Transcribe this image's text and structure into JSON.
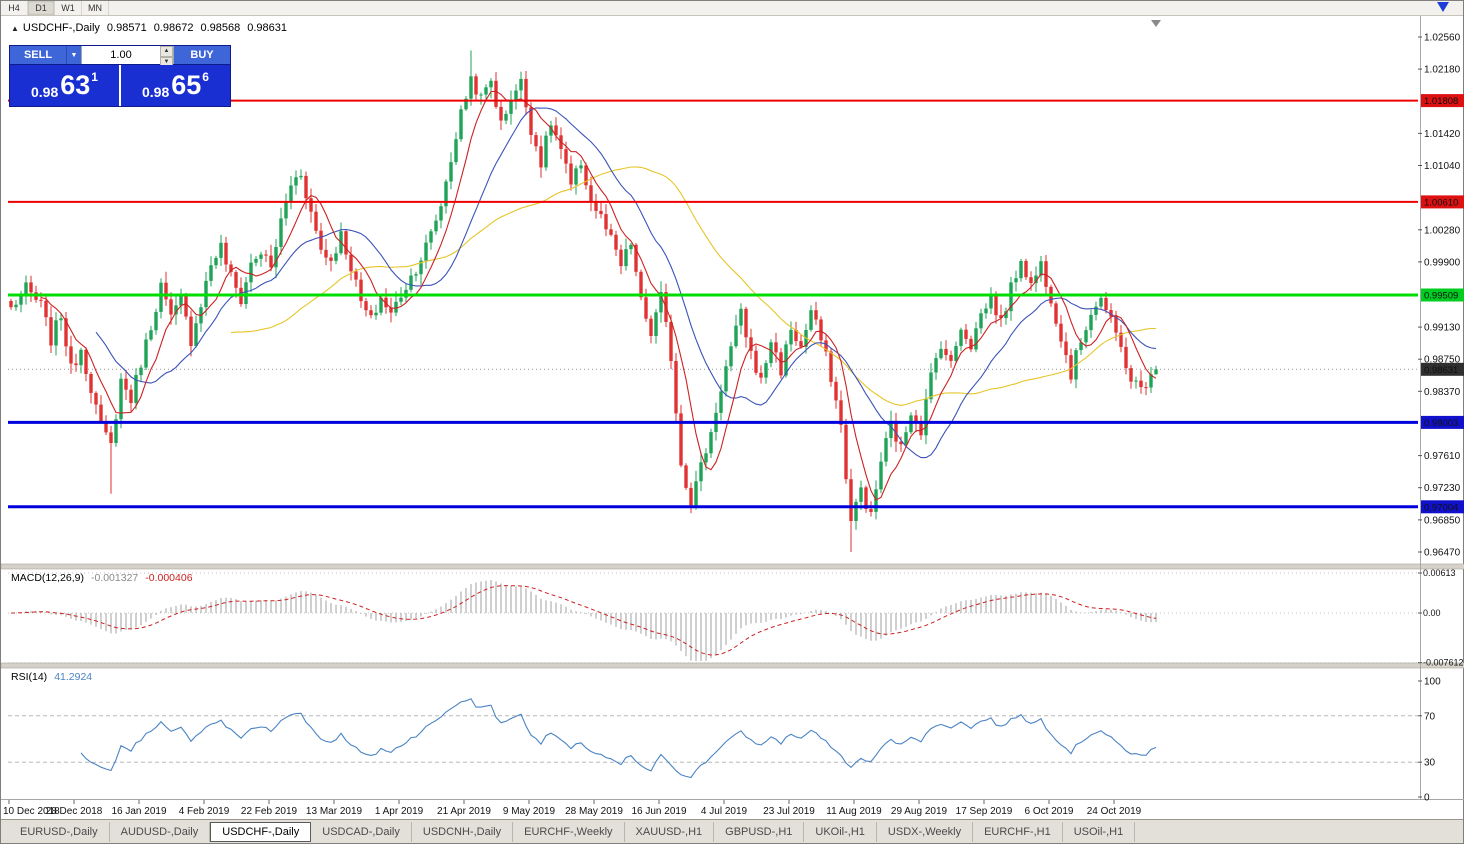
{
  "toolbar": {
    "items": [
      "H4",
      "D1",
      "W1",
      "MN"
    ],
    "active": "D1"
  },
  "icons": {
    "collapse": "▲",
    "dropdown": "▼",
    "spin_up": "▲",
    "spin_down": "▼"
  },
  "chart_header": {
    "symbol": "USDCHF-,Daily",
    "open": "0.98571",
    "high": "0.98672",
    "low": "0.98568",
    "close": "0.98631"
  },
  "trade_panel": {
    "sell_label": "SELL",
    "buy_label": "BUY",
    "volume": "1.00",
    "sell_price_major": "0.98",
    "sell_price_pips": "63",
    "sell_price_point": "1",
    "buy_price_major": "0.98",
    "buy_price_pips": "65",
    "buy_price_point": "6"
  },
  "indicators": {
    "macd_label": "MACD(12,26,9)",
    "macd_main_value": "-0.001327",
    "macd_signal_value": "-0.000406",
    "rsi_label": "RSI(14)",
    "rsi_value": "41.2924"
  },
  "tabs": [
    {
      "label": "EURUSD-,Daily",
      "active": false
    },
    {
      "label": "AUDUSD-,Daily",
      "active": false
    },
    {
      "label": "USDCHF-,Daily",
      "active": true
    },
    {
      "label": "USDCAD-,Daily",
      "active": false
    },
    {
      "label": "USDCNH-,Daily",
      "active": false
    },
    {
      "label": "EURCHF-,Weekly",
      "active": false
    },
    {
      "label": "XAUUSD-,H1",
      "active": false
    },
    {
      "label": "GBPUSD-,H1",
      "active": false
    },
    {
      "label": "UKOil-,H1",
      "active": false
    },
    {
      "label": "USDX-,Weekly",
      "active": false
    },
    {
      "label": "EURCHF-,H1",
      "active": false
    },
    {
      "label": "USOil-,H1",
      "active": false
    }
  ],
  "chart_data": [
    {
      "type": "candlestick",
      "symbol": "USDCHF",
      "timeframe": "Daily",
      "x_labels": [
        "10 Dec 2018",
        "28 Dec 2018",
        "16 Jan 2019",
        "4 Feb 2019",
        "22 Feb 2019",
        "13 Mar 2019",
        "1 Apr 2019",
        "21 Apr 2019",
        "9 May 2019",
        "28 May 2019",
        "16 Jun 2019",
        "4 Jul 2019",
        "23 Jul 2019",
        "11 Aug 2019",
        "29 Aug 2019",
        "17 Sep 2019",
        "6 Oct 2019",
        "24 Oct 2019"
      ],
      "bar_count": 230,
      "bars_per_label": 13,
      "ylim": [
        0.9647,
        1.0256
      ],
      "price_axis_ticks": [
        "1.02560",
        "1.02180",
        "1.01420",
        "1.01040",
        "1.00280",
        "0.99900",
        "0.99130",
        "0.98750",
        "0.98370",
        "0.97610",
        "0.97230",
        "0.96850",
        "0.96470"
      ],
      "axis_badges": [
        {
          "price": "1.01808",
          "bg": "#dd1111"
        },
        {
          "price": "1.00610",
          "bg": "#dd1111"
        },
        {
          "price": "0.99509",
          "bg": "#00cc22"
        },
        {
          "price": "0.98631",
          "bg": "#2f2f2f"
        },
        {
          "price": "0.98003",
          "bg": "#1111cc"
        },
        {
          "price": "0.97004",
          "bg": "#1111cc"
        }
      ],
      "horizontal_lines": [
        {
          "price": 1.01808,
          "color": "#ee0000",
          "width": 2
        },
        {
          "price": 1.0061,
          "color": "#ee0000",
          "width": 2
        },
        {
          "price": 0.99509,
          "color": "#00dd00",
          "width": 3
        },
        {
          "price": 0.98003,
          "color": "#0000dd",
          "width": 3
        },
        {
          "price": 0.97004,
          "color": "#0000dd",
          "width": 3
        }
      ],
      "current_price": 0.98631,
      "last_bar": {
        "open": 0.98571,
        "high": 0.98672,
        "low": 0.98568,
        "close": 0.98631
      },
      "up_color": "#1fa356",
      "down_color": "#e03232",
      "moving_averages": [
        {
          "period": 45,
          "color": "#e6c52a"
        },
        {
          "period": 18,
          "color": "#3b53b8"
        },
        {
          "period": 7,
          "color": "#cc2222"
        }
      ],
      "price_anchors": [
        [
          0,
          0.9935
        ],
        [
          3,
          0.9958
        ],
        [
          6,
          0.9938
        ],
        [
          8,
          0.9898
        ],
        [
          10,
          0.9928
        ],
        [
          12,
          0.9862
        ],
        [
          14,
          0.9888
        ],
        [
          16,
          0.9842
        ],
        [
          18,
          0.9795
        ],
        [
          20,
          0.9772
        ],
        [
          22,
          0.985
        ],
        [
          24,
          0.9828
        ],
        [
          26,
          0.9872
        ],
        [
          28,
          0.9915
        ],
        [
          30,
          0.9962
        ],
        [
          32,
          0.9922
        ],
        [
          34,
          0.9945
        ],
        [
          36,
          0.9898
        ],
        [
          38,
          0.9942
        ],
        [
          40,
          0.9988
        ],
        [
          42,
          1.0008
        ],
        [
          44,
          0.9972
        ],
        [
          46,
          0.9945
        ],
        [
          48,
          0.9988
        ],
        [
          50,
          1.0002
        ],
        [
          52,
          0.9982
        ],
        [
          54,
          1.0038
        ],
        [
          56,
          1.0082
        ],
        [
          58,
          1.0096
        ],
        [
          60,
          1.0048
        ],
        [
          62,
          1.0005
        ],
        [
          64,
          0.9992
        ],
        [
          66,
          1.0022
        ],
        [
          68,
          0.9985
        ],
        [
          70,
          0.9942
        ],
        [
          72,
          0.992
        ],
        [
          74,
          0.9948
        ],
        [
          76,
          0.9928
        ],
        [
          78,
          0.9952
        ],
        [
          80,
          0.9972
        ],
        [
          82,
          0.9995
        ],
        [
          84,
          1.0022
        ],
        [
          86,
          1.0058
        ],
        [
          88,
          1.0112
        ],
        [
          90,
          1.0165
        ],
        [
          92,
          1.0208
        ],
        [
          94,
          1.0182
        ],
        [
          96,
          1.0205
        ],
        [
          98,
          1.0152
        ],
        [
          100,
          1.0185
        ],
        [
          102,
          1.0202
        ],
        [
          104,
          1.0148
        ],
        [
          106,
          1.0108
        ],
        [
          108,
          1.0155
        ],
        [
          110,
          1.0122
        ],
        [
          112,
          1.0078
        ],
        [
          114,
          1.0108
        ],
        [
          116,
          1.0062
        ],
        [
          118,
          1.0042
        ],
        [
          120,
          1.0015
        ],
        [
          122,
          0.9985
        ],
        [
          124,
          1.0012
        ],
        [
          126,
          0.9942
        ],
        [
          128,
          0.9905
        ],
        [
          130,
          0.9948
        ],
        [
          132,
          0.9878
        ],
        [
          134,
          0.9752
        ],
        [
          136,
          0.9708
        ],
        [
          138,
          0.9748
        ],
        [
          140,
          0.9788
        ],
        [
          142,
          0.9842
        ],
        [
          144,
          0.9888
        ],
        [
          146,
          0.9928
        ],
        [
          148,
          0.9882
        ],
        [
          150,
          0.9848
        ],
        [
          152,
          0.9898
        ],
        [
          154,
          0.9862
        ],
        [
          156,
          0.9912
        ],
        [
          158,
          0.9888
        ],
        [
          160,
          0.9932
        ],
        [
          162,
          0.9898
        ],
        [
          164,
          0.9855
        ],
        [
          166,
          0.9795
        ],
        [
          168,
          0.9682
        ],
        [
          170,
          0.9722
        ],
        [
          172,
          0.9688
        ],
        [
          174,
          0.9755
        ],
        [
          176,
          0.9798
        ],
        [
          178,
          0.9768
        ],
        [
          180,
          0.9815
        ],
        [
          182,
          0.9792
        ],
        [
          184,
          0.9855
        ],
        [
          186,
          0.9895
        ],
        [
          188,
          0.9868
        ],
        [
          190,
          0.9915
        ],
        [
          192,
          0.9892
        ],
        [
          194,
          0.9928
        ],
        [
          196,
          0.9948
        ],
        [
          198,
          0.9918
        ],
        [
          200,
          0.9958
        ],
        [
          202,
          0.9995
        ],
        [
          204,
          0.9962
        ],
        [
          206,
          0.9988
        ],
        [
          208,
          0.9948
        ],
        [
          210,
          0.9902
        ],
        [
          212,
          0.9858
        ],
        [
          214,
          0.9898
        ],
        [
          216,
          0.9932
        ],
        [
          218,
          0.9948
        ],
        [
          220,
          0.9918
        ],
        [
          222,
          0.9888
        ],
        [
          224,
          0.9852
        ],
        [
          226,
          0.9838
        ],
        [
          228,
          0.9845
        ],
        [
          229,
          0.98631
        ]
      ],
      "wick_overrides": [
        {
          "bar": 20,
          "low": 0.9716
        },
        {
          "bar": 92,
          "high": 1.024
        },
        {
          "bar": 136,
          "low": 0.9693
        },
        {
          "bar": 168,
          "low": 0.9647
        }
      ],
      "noise_seed": 7
    },
    {
      "type": "macd",
      "label": "MACD(12,26,9)",
      "fast": 12,
      "slow": 26,
      "signal": 9,
      "current_main": -0.001327,
      "current_signal": -0.000406,
      "y_ticks": [
        "0.00613",
        "0.00",
        "-0.007612"
      ],
      "histogram_color": "#a8a8a8",
      "signal_color": "#cc2222",
      "ylim": [
        -0.0079,
        0.007
      ]
    },
    {
      "type": "rsi",
      "label": "RSI(14)",
      "period": 14,
      "current": 41.2924,
      "y_ticks": [
        "100",
        "70",
        "30",
        "0"
      ],
      "levels": [
        70,
        30
      ],
      "line_color": "#4a84c4",
      "ylim": [
        0,
        100
      ]
    }
  ]
}
